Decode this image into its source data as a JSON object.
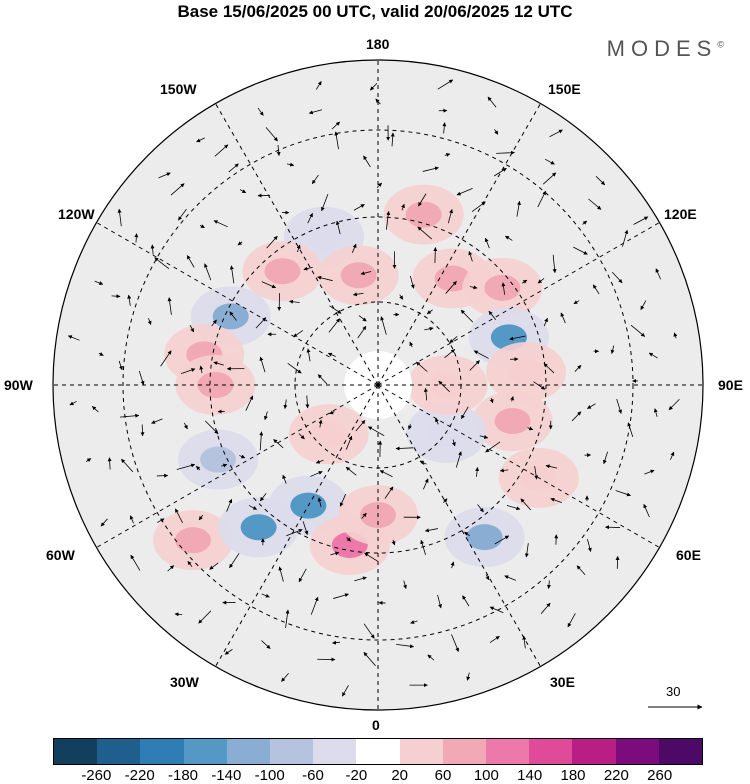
{
  "title": "Base 15/06/2025 00 UTC, valid 20/06/2025 12 UTC",
  "brand": "MODES",
  "brand_mark": "©",
  "lon_labels": {
    "l180": "180",
    "l150w": "150W",
    "l150e": "150E",
    "l120w": "120W",
    "l120e": "120E",
    "l90w": "90W",
    "l90e": "90E",
    "l60w": "60W",
    "l60e": "60E",
    "l30w": "30W",
    "l30e": "30E",
    "l0": "0"
  },
  "reference_vector": "30",
  "colorbar": {
    "ticks": [
      "-260",
      "-220",
      "-180",
      "-140",
      "-100",
      "-60",
      "-20",
      "20",
      "60",
      "100",
      "140",
      "180",
      "220",
      "260"
    ],
    "colors": [
      "#123f5e",
      "#1f5f8d",
      "#2f7db5",
      "#5498c6",
      "#8aaed3",
      "#b6c3df",
      "#dcdcec",
      "#ffffff",
      "#f6d0d0",
      "#f2a9b6",
      "#ec79a9",
      "#df4a99",
      "#b81e84",
      "#7c0c7d",
      "#4c0a66"
    ]
  },
  "anomalies": [
    {
      "lon": 165,
      "lat": 52,
      "value": 70
    },
    {
      "lon": -160,
      "lat": 56,
      "value": -40
    },
    {
      "lon": -140,
      "lat": 58,
      "value": 60
    },
    {
      "lon": -170,
      "lat": 66,
      "value": 60
    },
    {
      "lon": 145,
      "lat": 62,
      "value": 60
    },
    {
      "lon": 128,
      "lat": 56,
      "value": 60
    },
    {
      "lon": -115,
      "lat": 55,
      "value": -120
    },
    {
      "lon": 110,
      "lat": 60,
      "value": -160
    },
    {
      "lon": -100,
      "lat": 52,
      "value": 60
    },
    {
      "lon": -90,
      "lat": 55,
      "value": 80
    },
    {
      "lon": -65,
      "lat": 52,
      "value": -80
    },
    {
      "lon": -50,
      "lat": 38,
      "value": 60
    },
    {
      "lon": -40,
      "lat": 50,
      "value": -150
    },
    {
      "lon": -30,
      "lat": 60,
      "value": -160
    },
    {
      "lon": -10,
      "lat": 55,
      "value": 110
    },
    {
      "lon": 0,
      "lat": 62,
      "value": 70
    },
    {
      "lon": 35,
      "lat": 50,
      "value": -120
    },
    {
      "lon": 75,
      "lat": 60,
      "value": 70
    },
    {
      "lon": 95,
      "lat": 58,
      "value": 40
    },
    {
      "lon": 60,
      "lat": 50,
      "value": 40
    },
    {
      "lon": -45,
      "lat": 75,
      "value": 40
    },
    {
      "lon": 55,
      "lat": 72,
      "value": -60
    },
    {
      "lon": 90,
      "lat": 75,
      "value": 30
    }
  ]
}
